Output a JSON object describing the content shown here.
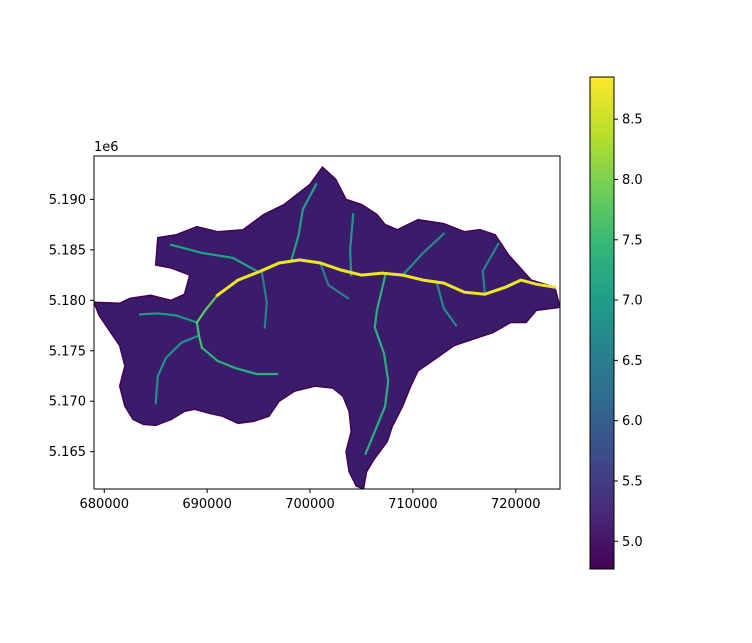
{
  "chart_data": {
    "type": "heatmap",
    "title": "",
    "xlabel": "",
    "ylabel": "",
    "xlim": [
      679000,
      724300
    ],
    "ylim": [
      5161300,
      5194300
    ],
    "x_ticks": [
      {
        "value": 680000,
        "label": "680000"
      },
      {
        "value": 690000,
        "label": "690000"
      },
      {
        "value": 700000,
        "label": "700000"
      },
      {
        "value": 710000,
        "label": "710000"
      },
      {
        "value": 720000,
        "label": "720000"
      }
    ],
    "y_ticks": [
      {
        "value": 5165000,
        "label": "5.165"
      },
      {
        "value": 5170000,
        "label": "5.170"
      },
      {
        "value": 5175000,
        "label": "5.175"
      },
      {
        "value": 5180000,
        "label": "5.180"
      },
      {
        "value": 5185000,
        "label": "5.185"
      },
      {
        "value": 5190000,
        "label": "5.190"
      }
    ],
    "y_offset_label": "1e6",
    "colorbar": {
      "colormap": "viridis",
      "range": [
        4.77,
        8.85
      ],
      "ticks": [
        {
          "value": 5.0,
          "label": "5.0"
        },
        {
          "value": 5.5,
          "label": "5.5"
        },
        {
          "value": 6.0,
          "label": "6.0"
        },
        {
          "value": 6.5,
          "label": "6.5"
        },
        {
          "value": 7.0,
          "label": "7.0"
        },
        {
          "value": 7.5,
          "label": "7.5"
        },
        {
          "value": 8.0,
          "label": "8.0"
        },
        {
          "value": 8.5,
          "label": "8.5"
        }
      ]
    },
    "watershed_outline": [
      [
        679000,
        5179800
      ],
      [
        681500,
        5179700
      ],
      [
        682500,
        5180200
      ],
      [
        684500,
        5180500
      ],
      [
        686500,
        5180000
      ],
      [
        687800,
        5180600
      ],
      [
        688300,
        5182500
      ],
      [
        686500,
        5183200
      ],
      [
        685000,
        5183500
      ],
      [
        685200,
        5186200
      ],
      [
        687000,
        5186500
      ],
      [
        689000,
        5187300
      ],
      [
        691000,
        5186800
      ],
      [
        693500,
        5187000
      ],
      [
        695500,
        5188500
      ],
      [
        697500,
        5189500
      ],
      [
        700000,
        5191500
      ],
      [
        701200,
        5193200
      ],
      [
        702500,
        5192000
      ],
      [
        703500,
        5190000
      ],
      [
        705000,
        5189500
      ],
      [
        706500,
        5188500
      ],
      [
        707300,
        5187500
      ],
      [
        708500,
        5187000
      ],
      [
        710500,
        5188000
      ],
      [
        713000,
        5187600
      ],
      [
        715000,
        5186800
      ],
      [
        716500,
        5187000
      ],
      [
        718000,
        5186500
      ],
      [
        719300,
        5184500
      ],
      [
        721500,
        5182000
      ],
      [
        723800,
        5181300
      ],
      [
        724300,
        5179300
      ],
      [
        722000,
        5179000
      ],
      [
        721000,
        5177800
      ],
      [
        719500,
        5177800
      ],
      [
        717800,
        5176800
      ],
      [
        716000,
        5176200
      ],
      [
        714000,
        5175500
      ],
      [
        712200,
        5174200
      ],
      [
        710500,
        5173000
      ],
      [
        709800,
        5171500
      ],
      [
        709000,
        5169500
      ],
      [
        708000,
        5167500
      ],
      [
        707500,
        5166000
      ],
      [
        706200,
        5164200
      ],
      [
        705500,
        5163000
      ],
      [
        705200,
        5161300
      ],
      [
        704500,
        5161600
      ],
      [
        703800,
        5163000
      ],
      [
        703500,
        5165000
      ],
      [
        704000,
        5167000
      ],
      [
        703800,
        5169000
      ],
      [
        703200,
        5170500
      ],
      [
        702200,
        5171300
      ],
      [
        700500,
        5171500
      ],
      [
        698500,
        5171000
      ],
      [
        697000,
        5170000
      ],
      [
        696000,
        5168500
      ],
      [
        694500,
        5168000
      ],
      [
        693000,
        5167800
      ],
      [
        691500,
        5168500
      ],
      [
        690200,
        5168800
      ],
      [
        688800,
        5169200
      ],
      [
        687800,
        5169000
      ],
      [
        686500,
        5168200
      ],
      [
        685000,
        5167600
      ],
      [
        683800,
        5167700
      ],
      [
        682800,
        5168200
      ],
      [
        682000,
        5169500
      ],
      [
        681500,
        5171500
      ],
      [
        682000,
        5173500
      ],
      [
        681500,
        5175500
      ],
      [
        680500,
        5177000
      ],
      [
        679500,
        5178500
      ],
      [
        679000,
        5179800
      ]
    ],
    "streams": [
      {
        "value": 8.75,
        "points": [
          [
            691000,
            5180500
          ],
          [
            693000,
            5182000
          ],
          [
            695000,
            5182800
          ],
          [
            697000,
            5183700
          ],
          [
            699000,
            5184000
          ],
          [
            701000,
            5183700
          ],
          [
            703000,
            5183000
          ],
          [
            705000,
            5182500
          ],
          [
            707000,
            5182700
          ],
          [
            709000,
            5182500
          ],
          [
            711000,
            5182000
          ],
          [
            713000,
            5181700
          ],
          [
            715000,
            5180800
          ],
          [
            717000,
            5180600
          ],
          [
            719000,
            5181300
          ],
          [
            720500,
            5182000
          ],
          [
            722000,
            5181600
          ],
          [
            723800,
            5181300
          ]
        ]
      },
      {
        "value": 7.8,
        "points": [
          [
            689000,
            5177800
          ],
          [
            689800,
            5179000
          ],
          [
            691000,
            5180500
          ]
        ]
      },
      {
        "value": 7.6,
        "points": [
          [
            689000,
            5177800
          ],
          [
            689200,
            5176500
          ],
          [
            689500,
            5175300
          ]
        ]
      },
      {
        "value": 7.3,
        "points": [
          [
            689500,
            5175300
          ],
          [
            691000,
            5174000
          ],
          [
            692700,
            5173300
          ],
          [
            694800,
            5172700
          ],
          [
            696800,
            5172700
          ]
        ]
      },
      {
        "value": 7.3,
        "points": [
          [
            707300,
            5182400
          ],
          [
            706500,
            5179000
          ],
          [
            706300,
            5177300
          ],
          [
            707200,
            5174700
          ],
          [
            707600,
            5172000
          ],
          [
            707300,
            5169500
          ],
          [
            706300,
            5167000
          ],
          [
            705400,
            5164800
          ]
        ]
      },
      {
        "value": 7.1,
        "points": [
          [
            695000,
            5182800
          ],
          [
            692500,
            5184200
          ],
          [
            689500,
            5184700
          ],
          [
            686500,
            5185500
          ]
        ]
      },
      {
        "value": 7.1,
        "points": [
          [
            698200,
            5184000
          ],
          [
            698900,
            5186500
          ],
          [
            699300,
            5189000
          ],
          [
            700600,
            5191500
          ]
        ]
      },
      {
        "value": 6.9,
        "points": [
          [
            689000,
            5177800
          ],
          [
            687000,
            5178500
          ],
          [
            685200,
            5178700
          ],
          [
            683500,
            5178600
          ]
        ]
      },
      {
        "value": 6.9,
        "points": [
          [
            704000,
            5182500
          ],
          [
            703900,
            5185000
          ],
          [
            704200,
            5188500
          ]
        ]
      },
      {
        "value": 6.8,
        "points": [
          [
            689200,
            5176500
          ],
          [
            687500,
            5175800
          ],
          [
            686000,
            5174300
          ],
          [
            685200,
            5172500
          ],
          [
            685000,
            5169800
          ]
        ]
      },
      {
        "value": 6.7,
        "points": [
          [
            712300,
            5181800
          ],
          [
            713000,
            5179200
          ],
          [
            714200,
            5177500
          ]
        ]
      },
      {
        "value": 6.7,
        "points": [
          [
            709000,
            5182500
          ],
          [
            711000,
            5184700
          ],
          [
            713000,
            5186600
          ]
        ]
      },
      {
        "value": 6.6,
        "points": [
          [
            717000,
            5180600
          ],
          [
            716800,
            5182900
          ],
          [
            718300,
            5185600
          ]
        ]
      },
      {
        "value": 6.5,
        "points": [
          [
            695300,
            5182900
          ],
          [
            695800,
            5179800
          ],
          [
            695600,
            5177300
          ]
        ]
      },
      {
        "value": 6.5,
        "points": [
          [
            701000,
            5183700
          ],
          [
            701800,
            5181500
          ],
          [
            703700,
            5180200
          ]
        ]
      }
    ]
  }
}
